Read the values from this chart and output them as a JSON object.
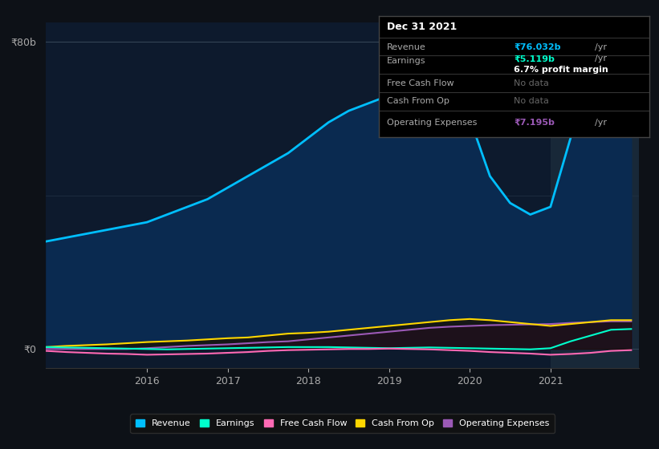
{
  "bg_color": "#0d1117",
  "chart_bg": "#0d1a2d",
  "ylabel_top": "₹80b",
  "ylabel_zero": "₹0",
  "x_labels": [
    "2016",
    "2017",
    "2018",
    "2019",
    "2020",
    "2021"
  ],
  "x_ticks": [
    2016,
    2017,
    2018,
    2019,
    2020,
    2021
  ],
  "revenue": {
    "x": [
      2014.75,
      2015.0,
      2015.25,
      2015.5,
      2015.75,
      2016.0,
      2016.25,
      2016.5,
      2016.75,
      2017.0,
      2017.25,
      2017.5,
      2017.75,
      2018.0,
      2018.25,
      2018.5,
      2018.75,
      2019.0,
      2019.25,
      2019.5,
      2019.75,
      2020.0,
      2020.25,
      2020.5,
      2020.75,
      2021.0,
      2021.25,
      2021.5,
      2021.75,
      2022.0
    ],
    "y": [
      28,
      29,
      30,
      31,
      32,
      33,
      35,
      37,
      39,
      42,
      45,
      48,
      51,
      55,
      59,
      62,
      64,
      66,
      67,
      67,
      66,
      60,
      45,
      38,
      35,
      37,
      55,
      68,
      76,
      78
    ],
    "color": "#00bfff",
    "label": "Revenue"
  },
  "earnings": {
    "x": [
      2014.75,
      2015.0,
      2015.25,
      2015.5,
      2015.75,
      2016.0,
      2016.25,
      2016.5,
      2016.75,
      2017.0,
      2017.25,
      2017.5,
      2017.75,
      2018.0,
      2018.25,
      2018.5,
      2018.75,
      2019.0,
      2019.25,
      2019.5,
      2019.75,
      2020.0,
      2020.25,
      2020.5,
      2020.75,
      2021.0,
      2021.25,
      2021.5,
      2021.75,
      2022.0
    ],
    "y": [
      0.5,
      0.4,
      0.3,
      0.2,
      0.1,
      0.0,
      -0.1,
      0.0,
      0.1,
      0.2,
      0.3,
      0.4,
      0.5,
      0.5,
      0.5,
      0.4,
      0.3,
      0.2,
      0.3,
      0.4,
      0.3,
      0.2,
      0.1,
      0.0,
      -0.1,
      0.2,
      2.0,
      3.5,
      5.0,
      5.2
    ],
    "color": "#00ffcc",
    "label": "Earnings"
  },
  "free_cash_flow": {
    "x": [
      2014.75,
      2015.0,
      2015.25,
      2015.5,
      2015.75,
      2016.0,
      2016.25,
      2016.5,
      2016.75,
      2017.0,
      2017.25,
      2017.5,
      2017.75,
      2018.0,
      2018.25,
      2018.5,
      2018.75,
      2019.0,
      2019.25,
      2019.5,
      2019.75,
      2020.0,
      2020.25,
      2020.5,
      2020.75,
      2021.0,
      2021.25,
      2021.5,
      2021.75,
      2022.0
    ],
    "y": [
      -0.5,
      -0.8,
      -1.0,
      -1.2,
      -1.3,
      -1.5,
      -1.4,
      -1.3,
      -1.2,
      -1.0,
      -0.8,
      -0.5,
      -0.3,
      -0.2,
      -0.1,
      0.0,
      0.0,
      0.1,
      0.0,
      -0.1,
      -0.3,
      -0.5,
      -0.8,
      -1.0,
      -1.2,
      -1.5,
      -1.3,
      -1.0,
      -0.5,
      -0.3
    ],
    "color": "#ff69b4",
    "label": "Free Cash Flow"
  },
  "cash_from_op": {
    "x": [
      2014.75,
      2015.0,
      2015.25,
      2015.5,
      2015.75,
      2016.0,
      2016.25,
      2016.5,
      2016.75,
      2017.0,
      2017.25,
      2017.5,
      2017.75,
      2018.0,
      2018.25,
      2018.5,
      2018.75,
      2019.0,
      2019.25,
      2019.5,
      2019.75,
      2020.0,
      2020.25,
      2020.5,
      2020.75,
      2021.0,
      2021.25,
      2021.5,
      2021.75,
      2022.0
    ],
    "y": [
      0.5,
      0.8,
      1.0,
      1.2,
      1.5,
      1.8,
      2.0,
      2.2,
      2.5,
      2.8,
      3.0,
      3.5,
      4.0,
      4.2,
      4.5,
      5.0,
      5.5,
      6.0,
      6.5,
      7.0,
      7.5,
      7.8,
      7.5,
      7.0,
      6.5,
      6.0,
      6.5,
      7.0,
      7.5,
      7.5
    ],
    "color": "#ffd700",
    "label": "Cash From Op"
  },
  "operating_expenses": {
    "x": [
      2014.75,
      2015.0,
      2015.25,
      2015.5,
      2015.75,
      2016.0,
      2016.25,
      2016.5,
      2016.75,
      2017.0,
      2017.25,
      2017.5,
      2017.75,
      2018.0,
      2018.25,
      2018.5,
      2018.75,
      2019.0,
      2019.25,
      2019.5,
      2019.75,
      2020.0,
      2020.25,
      2020.5,
      2020.75,
      2021.0,
      2021.25,
      2021.5,
      2021.75,
      2022.0
    ],
    "y": [
      0.0,
      0.0,
      0.0,
      0.0,
      0.0,
      0.2,
      0.5,
      0.8,
      1.0,
      1.2,
      1.5,
      1.8,
      2.0,
      2.5,
      3.0,
      3.5,
      4.0,
      4.5,
      5.0,
      5.5,
      5.8,
      6.0,
      6.2,
      6.3,
      6.4,
      6.5,
      6.8,
      7.0,
      7.2,
      7.2
    ],
    "color": "#9b59b6",
    "label": "Operating Expenses"
  },
  "tooltip": {
    "date": "Dec 31 2021",
    "revenue_val": "₹76.032b",
    "earnings_val": "₹5.119b",
    "profit_margin": "6.7%",
    "free_cash_flow": "No data",
    "cash_from_op": "No data",
    "operating_expenses": "₹7.195b",
    "revenue_color": "#00bfff",
    "earnings_color": "#00ffcc",
    "opex_color": "#9b59b6"
  },
  "highlight_color": "#1a2a3a",
  "ylim": [
    -5,
    85
  ],
  "xlim": [
    2014.75,
    2022.1
  ],
  "highlight_start": 2021.0
}
